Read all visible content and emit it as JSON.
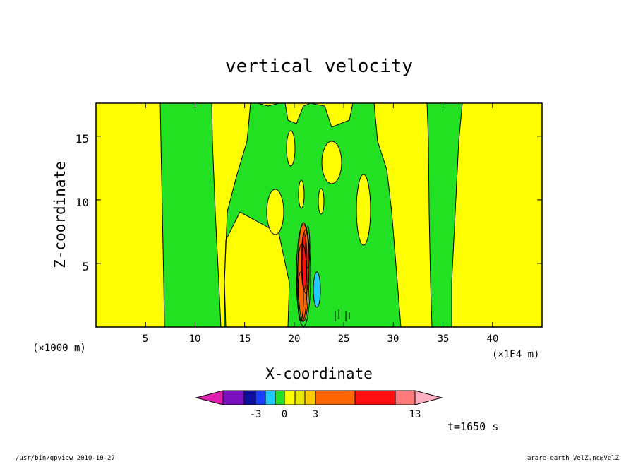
{
  "chart_data": {
    "type": "heatmap",
    "title": "vertical velocity",
    "xlabel": "X-coordinate",
    "ylabel": "Z-coordinate",
    "x_unit_left": "(×1000 m)",
    "x_unit_right": "(×1E4 m)",
    "xlim": [
      0,
      45
    ],
    "ylim": [
      0,
      17.6
    ],
    "x_ticks": [
      "5",
      "10",
      "15",
      "20",
      "25",
      "30",
      "35",
      "40"
    ],
    "y_ticks": [
      "5",
      "10",
      "15"
    ],
    "colorbar": {
      "colors": [
        "#e020b0",
        "#7a10c0",
        "#1010a0",
        "#1a3cff",
        "#20ccff",
        "#22e022",
        "#ffff00",
        "#e8e800",
        "#ffcc00",
        "#ff6600",
        "#ff1010",
        "#ff7a7a",
        "#ffb0c0"
      ],
      "tick_labels": [
        "-3",
        "0",
        "3",
        "13"
      ]
    },
    "time_label": "t=1650 s",
    "background_value_color": "#ffff00",
    "updraft_color": "#22e022"
  },
  "footer": {
    "left": "/usr/bin/gpview   2010-10-27",
    "right": "arare-earth_VelZ.nc@VelZ"
  }
}
